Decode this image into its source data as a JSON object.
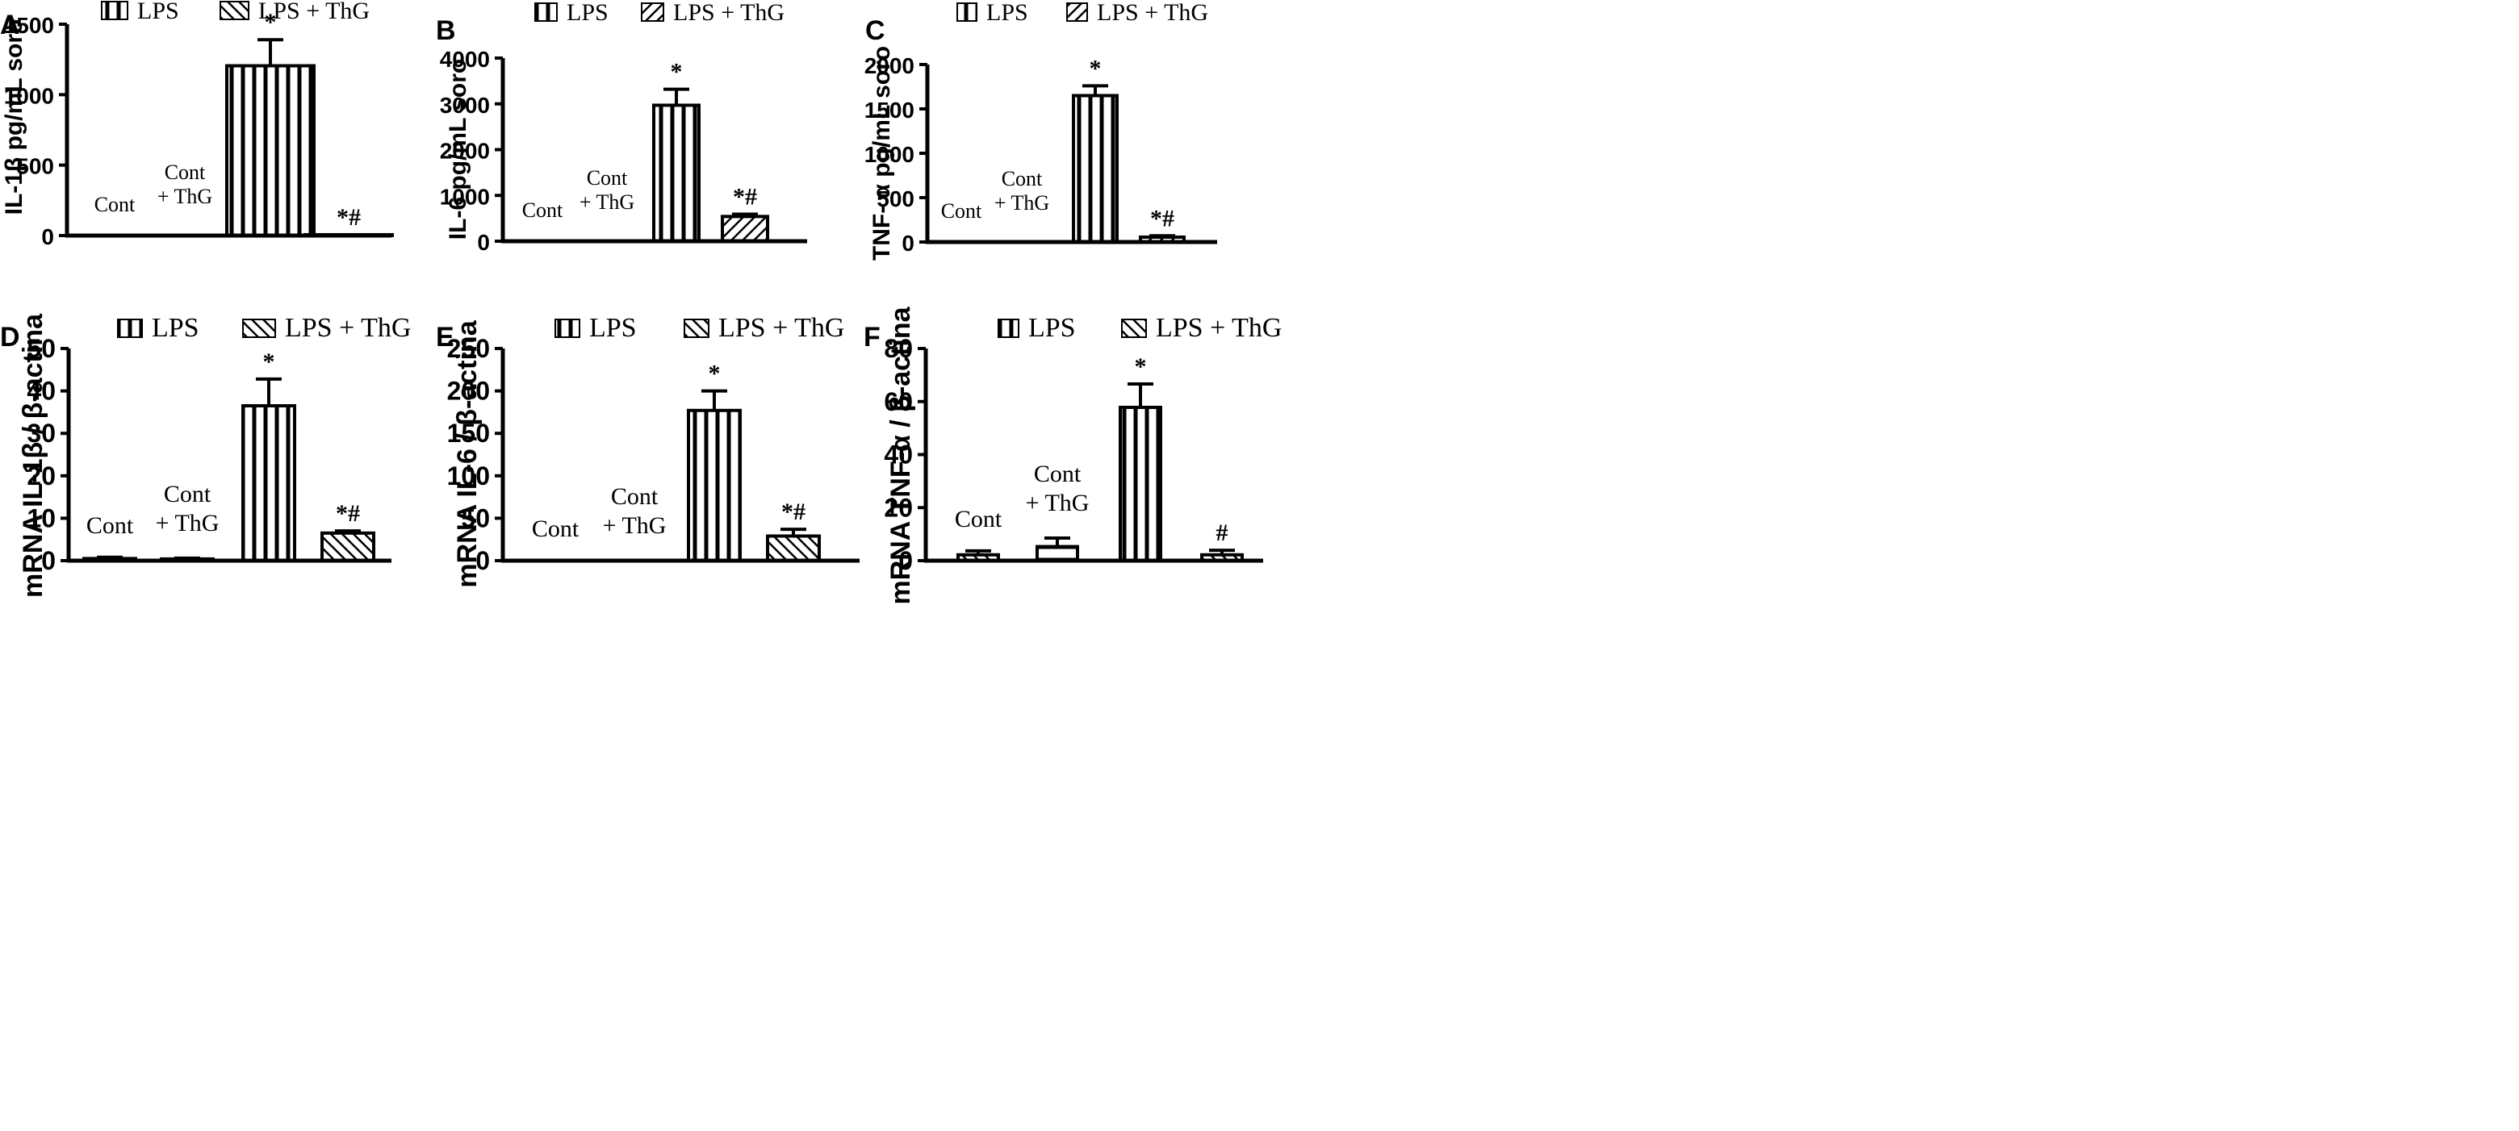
{
  "figure": {
    "legend_lps": "LPS",
    "legend_lps_thg": "LPS + ThG"
  },
  "chart_data": [
    {
      "panel": "A",
      "type": "bar",
      "ylabel": "IL-1β pg/mL soro",
      "ylim": [
        0,
        1500
      ],
      "yticks": [
        0,
        500,
        1000,
        1500
      ],
      "bars": [
        {
          "label": "Cont",
          "value": 0,
          "err": 0,
          "annot": "",
          "pattern": "none"
        },
        {
          "label": "Cont\n+ ThG",
          "value": 0,
          "err": 0,
          "annot": "",
          "pattern": "none"
        },
        {
          "label": "",
          "value": 1205,
          "err": 185,
          "annot": "*",
          "pattern": "vertical"
        },
        {
          "label": "",
          "value": 6,
          "err": 0,
          "annot": "*#",
          "pattern": "diag-back"
        }
      ]
    },
    {
      "panel": "B",
      "type": "bar",
      "ylabel": "IL-6 pg/mL soro",
      "ylim": [
        0,
        4000
      ],
      "yticks": [
        0,
        1000,
        2000,
        3000,
        4000
      ],
      "bars": [
        {
          "label": "Cont",
          "value": 0,
          "err": 0,
          "annot": "",
          "pattern": "none"
        },
        {
          "label": "Cont\n+ ThG",
          "value": 0,
          "err": 0,
          "annot": "",
          "pattern": "none"
        },
        {
          "label": "",
          "value": 2970,
          "err": 350,
          "annot": "*",
          "pattern": "vertical"
        },
        {
          "label": "",
          "value": 540,
          "err": 50,
          "annot": "*#",
          "pattern": "diag-fwd"
        }
      ]
    },
    {
      "panel": "C",
      "type": "bar",
      "ylabel": "TNF- α pg/mL soro",
      "ylim": [
        0,
        2000
      ],
      "yticks": [
        0,
        500,
        1000,
        1500,
        2000
      ],
      "bars": [
        {
          "label": "Cont",
          "value": 0,
          "err": 0,
          "annot": "",
          "pattern": "none"
        },
        {
          "label": "Cont\n+ ThG",
          "value": 0,
          "err": 0,
          "annot": "",
          "pattern": "none"
        },
        {
          "label": "",
          "value": 1650,
          "err": 110,
          "annot": "*",
          "pattern": "vertical"
        },
        {
          "label": "",
          "value": 55,
          "err": 15,
          "annot": "*#",
          "pattern": "diag-fwd"
        }
      ]
    },
    {
      "panel": "D",
      "type": "bar",
      "ylabel": "mRNA IL-1β / β-actina",
      "ylim": [
        0,
        50
      ],
      "yticks": [
        0,
        10,
        20,
        30,
        40,
        50
      ],
      "bars": [
        {
          "label": "Cont",
          "value": 0.5,
          "err": 0.3,
          "annot": "",
          "pattern": "none"
        },
        {
          "label": "Cont\n+ ThG",
          "value": 0.4,
          "err": 0.2,
          "annot": "",
          "pattern": "none"
        },
        {
          "label": "",
          "value": 36.5,
          "err": 6.3,
          "annot": "*",
          "pattern": "vertical"
        },
        {
          "label": "",
          "value": 6.5,
          "err": 0.5,
          "annot": "*#",
          "pattern": "diag-back"
        }
      ]
    },
    {
      "panel": "E",
      "type": "bar",
      "ylabel": "mRNA IL-6 / β-actina",
      "ylim": [
        0,
        250
      ],
      "yticks": [
        0,
        50,
        100,
        150,
        200,
        250
      ],
      "bars": [
        {
          "label": "Cont",
          "value": 0,
          "err": 0,
          "annot": "",
          "pattern": "none"
        },
        {
          "label": "Cont\n+ ThG",
          "value": 0,
          "err": 0,
          "annot": "",
          "pattern": "none"
        },
        {
          "label": "",
          "value": 177,
          "err": 23,
          "annot": "*",
          "pattern": "vertical"
        },
        {
          "label": "",
          "value": 29,
          "err": 8,
          "annot": "*#",
          "pattern": "diag-back"
        }
      ]
    },
    {
      "panel": "F",
      "type": "bar",
      "ylabel": "mRNA TNF-α / β-actina",
      "ylim": [
        0,
        80
      ],
      "yticks": [
        0,
        20,
        40,
        60,
        80
      ],
      "bars": [
        {
          "label": "Cont",
          "value": 2.2,
          "err": 1.5,
          "annot": "",
          "pattern": "diag-back"
        },
        {
          "label": "Cont\n+ ThG",
          "value": 5.3,
          "err": 3.2,
          "annot": "",
          "pattern": "horizontal"
        },
        {
          "label": "",
          "value": 57.8,
          "err": 8.8,
          "annot": "*",
          "pattern": "vertical"
        },
        {
          "label": "",
          "value": 2.2,
          "err": 1.7,
          "annot": "#",
          "pattern": "diag-back"
        }
      ]
    }
  ]
}
